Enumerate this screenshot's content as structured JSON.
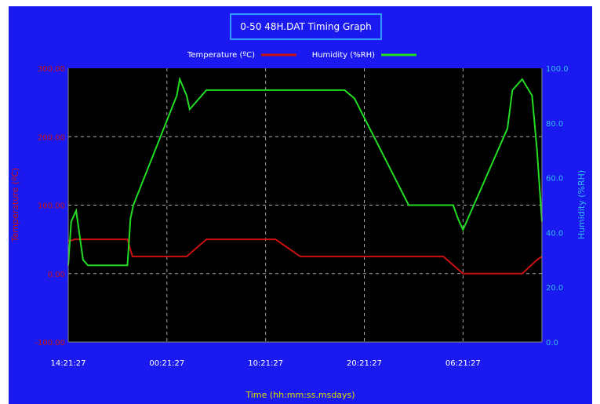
{
  "chart_data": {
    "type": "line",
    "title": "0-50 48H.DAT Timing Graph",
    "xlabel": "Time (hh:mm:ss.msdays)",
    "ylabel_left": "Temperature (ºC)",
    "ylabel_right": "Humidity (%RH)",
    "x_ticks": [
      "14:21:27",
      "00:21:27",
      "10:21:27",
      "20:21:27",
      "06:21:27"
    ],
    "y_left_ticks": [
      "300.00",
      "200.00",
      "100.00",
      "0.00",
      "-100.00"
    ],
    "y_right_ticks": [
      "100.0",
      "80.0",
      "60.0",
      "40.0",
      "20.0",
      "0.0"
    ],
    "ylim_left": [
      -100,
      300
    ],
    "ylim_right": [
      0,
      100
    ],
    "xlim_hours": [
      0,
      48
    ],
    "grid": true,
    "legend_placement": "top-center",
    "colors": {
      "background": "#1a1af0",
      "plot": "#000000",
      "temperature": "#cc1111",
      "humidity": "#22dd22",
      "left_axis_text": "#cc1111",
      "right_axis_text": "#33bbee",
      "title_text": "#ffffff",
      "grid": "#aaaaaa"
    },
    "series": [
      {
        "name": "Temperature (ºC)",
        "axis": "left",
        "x": [
          0,
          0.3,
          0.6,
          6.0,
          6.5,
          12.0,
          14.0,
          21.0,
          23.5,
          32.0,
          38.0,
          40.0,
          46.0,
          47.5,
          48.0
        ],
        "y": [
          48,
          48,
          50,
          50,
          25,
          25,
          50,
          50,
          25,
          25,
          25,
          0,
          0,
          20,
          25
        ]
      },
      {
        "name": "Humidity (%RH)",
        "axis": "right",
        "x": [
          0,
          0.3,
          0.8,
          1.5,
          2.0,
          6.0,
          6.3,
          6.6,
          11.0,
          11.3,
          12.0,
          12.3,
          14.0,
          28.0,
          29.0,
          34.5,
          35.0,
          39.0,
          39.5,
          40.0,
          44.5,
          45.0,
          46.0,
          47.0,
          47.5,
          48.0
        ],
        "y": [
          28,
          44,
          48,
          30,
          28,
          28,
          45,
          50,
          90,
          96,
          90,
          85,
          92,
          92,
          89,
          50,
          50,
          50,
          45,
          41,
          78,
          92,
          96,
          90,
          70,
          44
        ]
      }
    ]
  }
}
